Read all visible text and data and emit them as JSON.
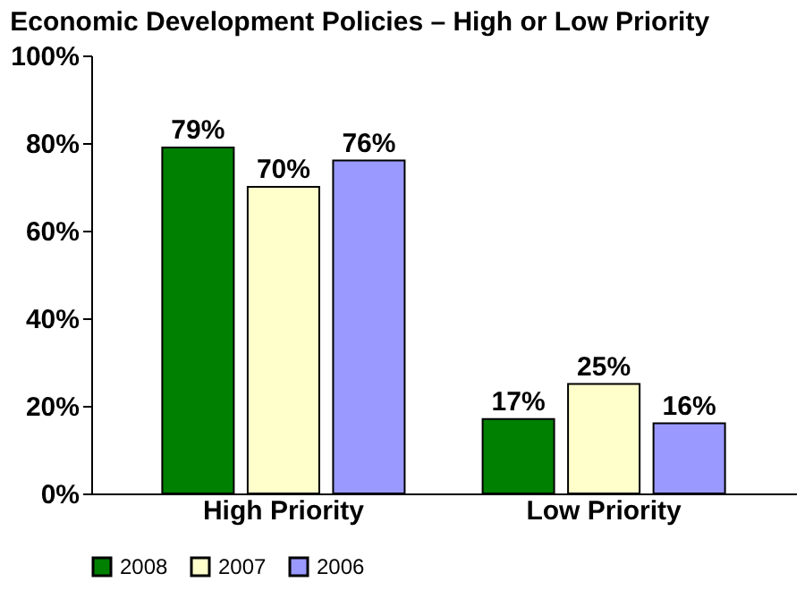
{
  "chart_data": {
    "type": "bar",
    "title": "Economic Development Policies – High or Low Priority",
    "categories": [
      "High Priority",
      "Low Priority"
    ],
    "series": [
      {
        "name": "2008",
        "color": "#008000",
        "values": [
          79,
          17
        ],
        "value_labels": [
          "79%",
          "17%"
        ]
      },
      {
        "name": "2007",
        "color": "#ffffcc",
        "values": [
          70,
          25
        ],
        "value_labels": [
          "70%",
          "25%"
        ]
      },
      {
        "name": "2006",
        "color": "#9999ff",
        "values": [
          76,
          16
        ],
        "value_labels": [
          "76%",
          "16%"
        ]
      }
    ],
    "ylim": [
      0,
      100
    ],
    "yticks": [
      {
        "value": 0,
        "label": "0%"
      },
      {
        "value": 20,
        "label": "20%"
      },
      {
        "value": 40,
        "label": "40%"
      },
      {
        "value": 60,
        "label": "60%"
      },
      {
        "value": 80,
        "label": "80%"
      },
      {
        "value": 100,
        "label": "100%"
      }
    ],
    "grid": false,
    "legend": "bottom"
  }
}
